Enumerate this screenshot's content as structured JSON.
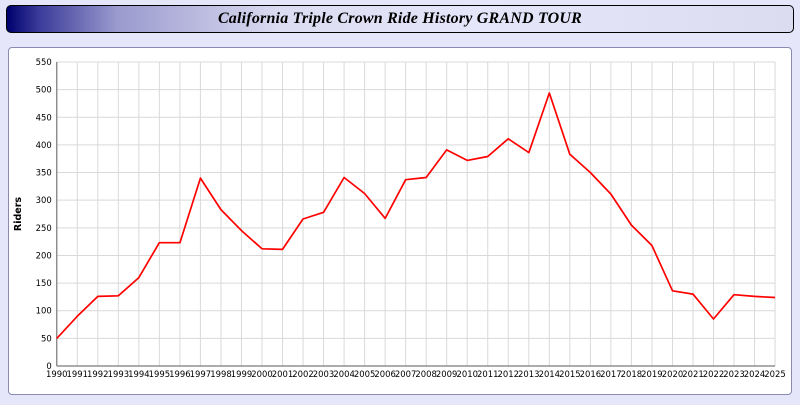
{
  "window": {
    "title": "California Triple Crown Ride History GRAND TOUR"
  },
  "colors": {
    "page_background": "#e6e6fa",
    "titlebar_dark": "#00006e",
    "line": "#ff0000",
    "grid": "#d9d9d9",
    "axis": "#7a7a7a",
    "plot_background": "#ffffff"
  },
  "chart_data": {
    "type": "line",
    "title": "California Triple Crown Ride History GRAND TOUR",
    "xlabel": "",
    "ylabel": "Riders",
    "ylim": [
      0,
      550
    ],
    "ytick_step": 50,
    "grid": true,
    "legend": "none",
    "line_color": "#ff0000",
    "x": [
      1990,
      1991,
      1992,
      1993,
      1994,
      1995,
      1996,
      1997,
      1998,
      1999,
      2000,
      2001,
      2002,
      2003,
      2004,
      2005,
      2006,
      2007,
      2008,
      2009,
      2010,
      2011,
      2012,
      2013,
      2014,
      2015,
      2016,
      2017,
      2018,
      2019,
      2020,
      2021,
      2022,
      2023,
      2024,
      2025
    ],
    "values": [
      50,
      90,
      126,
      127,
      160,
      223,
      223,
      340,
      283,
      245,
      212,
      211,
      266,
      278,
      341,
      312,
      267,
      337,
      341,
      391,
      372,
      379,
      411,
      386,
      494,
      383,
      350,
      311,
      255,
      218,
      136,
      130,
      85,
      129,
      126,
      124
    ]
  }
}
